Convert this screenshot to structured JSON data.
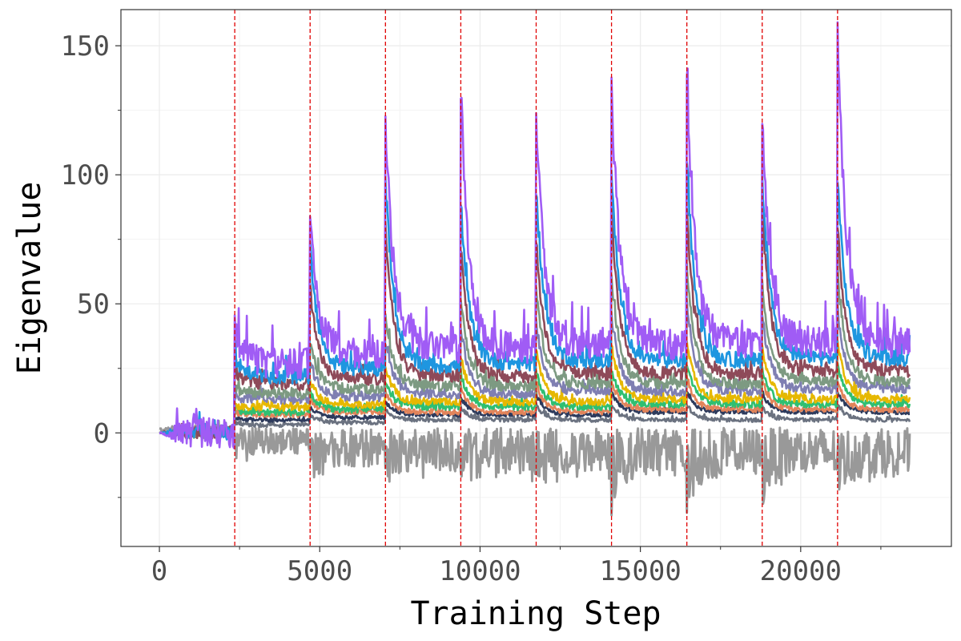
{
  "chart_data": {
    "type": "line",
    "title": "",
    "xlabel": "Training Step",
    "ylabel": "Eigenvalue",
    "xlim": [
      -1200,
      24700
    ],
    "ylim": [
      -44,
      164
    ],
    "x_ticks": [
      0,
      5000,
      10000,
      15000,
      20000
    ],
    "x_tick_labels": [
      "0",
      "5000",
      "10000",
      "15000",
      "20000"
    ],
    "y_ticks": [
      0,
      50,
      100,
      150
    ],
    "y_tick_labels": [
      "0",
      "50",
      "100",
      "150"
    ],
    "grid": true,
    "legend": "none",
    "x_end": 23400,
    "vlines": [
      2350,
      4700,
      7050,
      9400,
      11750,
      14100,
      16450,
      18800,
      21150
    ],
    "vline_color": "#e00000",
    "series": [
      {
        "color": "#999999",
        "kind": "negative",
        "rise_ends": [
          1,
          -8,
          -13,
          -15,
          -16,
          -16,
          -17,
          -17,
          -17,
          -17
        ],
        "spikes": [
          -12,
          -23,
          -22,
          -28,
          -27,
          -33,
          -35,
          -30,
          -30
        ],
        "noise": 8
      },
      {
        "color": "#6b7280",
        "rise_ends": [
          0,
          3,
          4,
          5,
          5,
          5,
          5,
          5,
          5,
          5
        ],
        "spikes": [
          4,
          7,
          9,
          10,
          11,
          11,
          11,
          10,
          11
        ],
        "noise": 1.5
      },
      {
        "color": "#2d3a5c",
        "rise_ends": [
          0,
          5,
          6,
          7,
          7,
          7,
          8,
          8,
          8,
          8
        ],
        "spikes": [
          6,
          10,
          12,
          14,
          15,
          16,
          16,
          15,
          16
        ],
        "noise": 1.5
      },
      {
        "color": "#e2845a",
        "rise_ends": [
          0,
          7,
          8,
          8,
          8,
          8,
          9,
          9,
          9,
          9
        ],
        "spikes": [
          8,
          13,
          16,
          18,
          19,
          20,
          21,
          20,
          20
        ],
        "noise": 2
      },
      {
        "color": "#2fbf71",
        "rise_ends": [
          0,
          8,
          9,
          10,
          10,
          10,
          11,
          11,
          11,
          11
        ],
        "spikes": [
          9,
          16,
          20,
          23,
          24,
          25,
          27,
          25,
          26
        ],
        "noise": 2.5
      },
      {
        "color": "#e6b800",
        "rise_ends": [
          0,
          10,
          11,
          12,
          12,
          12,
          13,
          13,
          13,
          13
        ],
        "spikes": [
          11,
          20,
          26,
          30,
          32,
          34,
          36,
          33,
          35
        ],
        "noise": 3
      },
      {
        "color": "#7f7fb2",
        "rise_ends": [
          0,
          13,
          14,
          15,
          15,
          16,
          16,
          16,
          17,
          17
        ],
        "spikes": [
          14,
          28,
          36,
          41,
          43,
          46,
          50,
          45,
          47
        ],
        "noise": 3.5
      },
      {
        "color": "#7d9a82",
        "rise_ends": [
          0,
          15,
          17,
          18,
          18,
          19,
          19,
          19,
          20,
          20
        ],
        "spikes": [
          17,
          35,
          45,
          52,
          56,
          60,
          64,
          58,
          62
        ],
        "noise": 4
      },
      {
        "color": "#8e4a59",
        "rise_ends": [
          0,
          19,
          21,
          22,
          22,
          23,
          23,
          23,
          24,
          24
        ],
        "spikes": [
          24,
          56,
          80,
          72,
          75,
          86,
          85,
          88,
          80
        ],
        "noise": 5
      },
      {
        "color": "#1e96e0",
        "rise_ends": [
          0,
          22,
          25,
          26,
          27,
          28,
          28,
          28,
          29,
          29
        ],
        "spikes": [
          30,
          72,
          100,
          88,
          95,
          102,
          106,
          100,
          100
        ],
        "noise": 6
      },
      {
        "color": "#a05cf5",
        "rise_ends": [
          0,
          27,
          31,
          33,
          33,
          34,
          34,
          35,
          35,
          35
        ],
        "spikes": [
          41,
          86,
          121,
          133,
          123,
          135,
          139,
          121,
          155
        ],
        "noise": 12
      }
    ]
  }
}
